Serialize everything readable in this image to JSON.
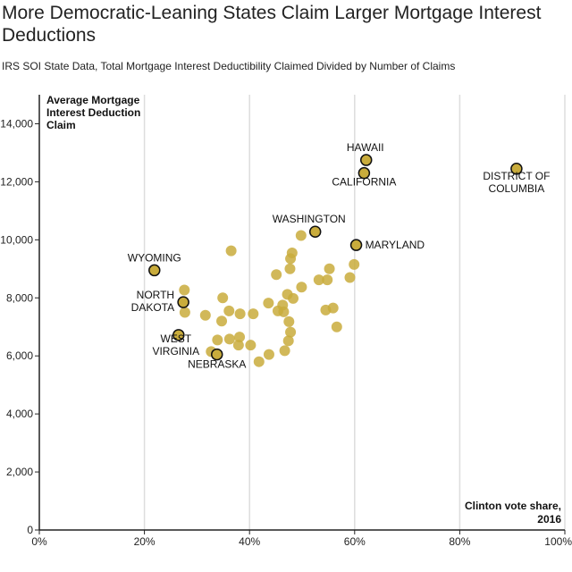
{
  "chart_data": {
    "type": "scatter",
    "title": "More Democratic-Leaning States Claim Larger Mortgage Interest Deductions",
    "subtitle": "IRS SOI State Data, Total Mortgage Interest Deductibility Claimed Divided by Number of Claims",
    "xlabel": "Clinton vote share, 2016",
    "ylabel": "Average Mortgage Interest Deduction Claim",
    "xlim": [
      0,
      1
    ],
    "ylim": [
      0,
      15000
    ],
    "grid": "vertical",
    "colors": {
      "point": "#c9ac3c",
      "point_stroke": "#111111",
      "grid": "#dddddd",
      "axis": "#222222"
    },
    "x_ticks": [
      {
        "value": 0,
        "label": "0%"
      },
      {
        "value": 0.2,
        "label": "20%"
      },
      {
        "value": 0.4,
        "label": "40%"
      },
      {
        "value": 0.6,
        "label": "60%"
      },
      {
        "value": 0.8,
        "label": "80%"
      },
      {
        "value": 1.0,
        "label": "100%"
      }
    ],
    "y_ticks": [
      {
        "value": 0,
        "label": "0"
      },
      {
        "value": 2000,
        "label": "2,000"
      },
      {
        "value": 4000,
        "label": "4,000"
      },
      {
        "value": 6000,
        "label": "6,000"
      },
      {
        "value": 8000,
        "label": "8,000"
      },
      {
        "value": 10000,
        "label": "10,000"
      },
      {
        "value": 12000,
        "label": "12,000"
      },
      {
        "value": 14000,
        "label": "14,000"
      }
    ],
    "points": [
      {
        "x": 0.908,
        "y": 12450,
        "label": [
          "DISTRICT OF",
          "COLUMBIA"
        ],
        "highlight": true
      },
      {
        "x": 0.622,
        "y": 12750,
        "label": [
          "HAWAII"
        ],
        "highlight": true
      },
      {
        "x": 0.618,
        "y": 12300,
        "label": [
          "CALIFORNIA"
        ],
        "highlight": true
      },
      {
        "x": 0.525,
        "y": 10280,
        "label": [
          "WASHINGTON"
        ],
        "highlight": true
      },
      {
        "x": 0.603,
        "y": 9820,
        "label": [
          "MARYLAND"
        ],
        "highlight": true
      },
      {
        "x": 0.219,
        "y": 8950,
        "label": [
          "WYOMING"
        ],
        "highlight": true
      },
      {
        "x": 0.274,
        "y": 7850,
        "label": [
          "NORTH",
          "DAKOTA"
        ],
        "highlight": true
      },
      {
        "x": 0.265,
        "y": 6720,
        "label": [
          "WEST",
          "VIRGINIA"
        ],
        "highlight": true
      },
      {
        "x": 0.338,
        "y": 6050,
        "label": [
          "NEBRASKA"
        ],
        "highlight": true
      },
      {
        "x": 0.365,
        "y": 9620
      },
      {
        "x": 0.276,
        "y": 8270
      },
      {
        "x": 0.277,
        "y": 7500
      },
      {
        "x": 0.316,
        "y": 7400
      },
      {
        "x": 0.349,
        "y": 8000
      },
      {
        "x": 0.347,
        "y": 7200
      },
      {
        "x": 0.361,
        "y": 7550
      },
      {
        "x": 0.382,
        "y": 7450
      },
      {
        "x": 0.407,
        "y": 7450
      },
      {
        "x": 0.339,
        "y": 6550
      },
      {
        "x": 0.362,
        "y": 6580
      },
      {
        "x": 0.381,
        "y": 6650
      },
      {
        "x": 0.379,
        "y": 6370
      },
      {
        "x": 0.402,
        "y": 6370
      },
      {
        "x": 0.327,
        "y": 6150
      },
      {
        "x": 0.418,
        "y": 5800
      },
      {
        "x": 0.437,
        "y": 6050
      },
      {
        "x": 0.467,
        "y": 6180
      },
      {
        "x": 0.474,
        "y": 6520
      },
      {
        "x": 0.478,
        "y": 6820
      },
      {
        "x": 0.475,
        "y": 7180
      },
      {
        "x": 0.465,
        "y": 7520
      },
      {
        "x": 0.454,
        "y": 7550
      },
      {
        "x": 0.463,
        "y": 7750
      },
      {
        "x": 0.483,
        "y": 7980
      },
      {
        "x": 0.472,
        "y": 8120
      },
      {
        "x": 0.436,
        "y": 7820
      },
      {
        "x": 0.451,
        "y": 8800
      },
      {
        "x": 0.477,
        "y": 9000
      },
      {
        "x": 0.478,
        "y": 9350
      },
      {
        "x": 0.481,
        "y": 9550
      },
      {
        "x": 0.499,
        "y": 8370
      },
      {
        "x": 0.498,
        "y": 10150
      },
      {
        "x": 0.532,
        "y": 8620
      },
      {
        "x": 0.548,
        "y": 8620
      },
      {
        "x": 0.552,
        "y": 9000
      },
      {
        "x": 0.545,
        "y": 7580
      },
      {
        "x": 0.559,
        "y": 7650
      },
      {
        "x": 0.566,
        "y": 7000
      },
      {
        "x": 0.591,
        "y": 8700
      },
      {
        "x": 0.599,
        "y": 9150
      }
    ]
  }
}
